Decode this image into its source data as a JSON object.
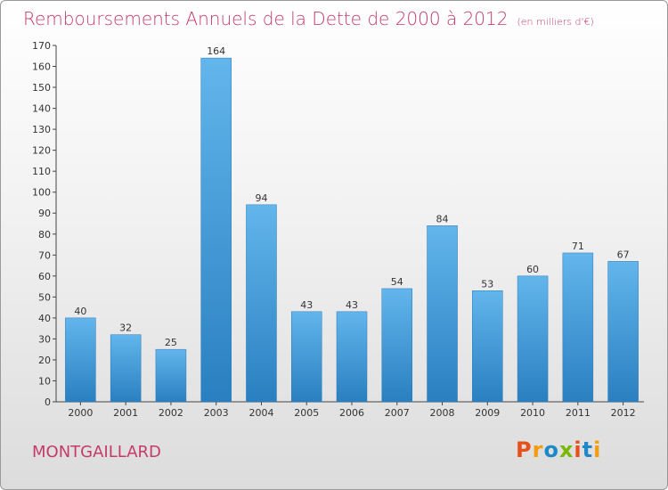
{
  "title": "Remboursements Annuels de la Dette de 2000 à 2012",
  "subtitle": "(en milliers d'€)",
  "city": "MONTGAILLARD",
  "logo": {
    "text": "Proxiti",
    "colors": [
      "#e8501a",
      "#f39c12",
      "#1e88c8",
      "#7ab800",
      "#e8501a",
      "#1e88c8",
      "#f39c12"
    ]
  },
  "colors": {
    "title": "#c53a6b",
    "bar_light": "#62b6ec",
    "bar_dark": "#2a7fc0",
    "axis": "#444444",
    "grid": "#bbbbbb"
  },
  "chart_data": {
    "type": "bar",
    "title": "Remboursements Annuels de la Dette de 2000 à 2012",
    "xlabel": "",
    "ylabel": "",
    "ylim": [
      0,
      170
    ],
    "yticks": [
      0,
      10,
      20,
      30,
      40,
      50,
      60,
      70,
      80,
      90,
      100,
      110,
      120,
      130,
      140,
      150,
      160,
      170
    ],
    "categories": [
      "2000",
      "2001",
      "2002",
      "2003",
      "2004",
      "2005",
      "2006",
      "2007",
      "2008",
      "2009",
      "2010",
      "2011",
      "2012"
    ],
    "values": [
      40,
      32,
      25,
      164,
      94,
      43,
      43,
      54,
      84,
      53,
      60,
      71,
      67
    ],
    "grid": false,
    "data_labels": true
  }
}
